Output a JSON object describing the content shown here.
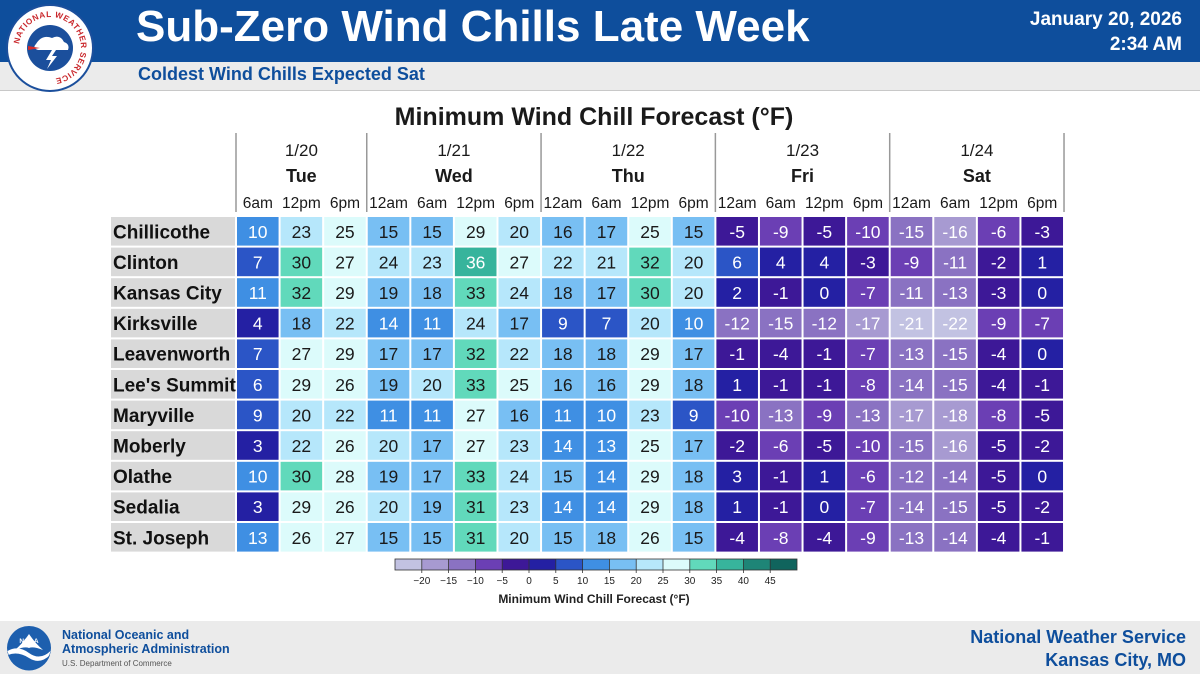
{
  "header": {
    "title": "Sub-Zero Wind Chills Late Week",
    "subtitle": "Coldest Wind Chills Expected Sat",
    "date": "January 20, 2026",
    "time": "2:34 AM",
    "logo_text": "NATIONAL WEATHER SERVICE"
  },
  "footer": {
    "noaa_line1": "National Oceanic and",
    "noaa_line2": "Atmospheric Administration",
    "noaa_dept": "U.S. Department of Commerce",
    "noaa_logo_text": "NOAA",
    "office_line1": "National Weather Service",
    "office_line2": "Kansas City, MO"
  },
  "colors": {
    "header_blue": "#0e4e9c",
    "scale": [
      {
        "min": -99,
        "max": -20,
        "color": "#c2c2e2"
      },
      {
        "min": -20,
        "max": -15,
        "color": "#a79ad1"
      },
      {
        "min": -15,
        "max": -10,
        "color": "#8a72c2"
      },
      {
        "min": -10,
        "max": -5,
        "color": "#6b3fb4"
      },
      {
        "min": -5,
        "max": 0,
        "color": "#3d1897"
      },
      {
        "min": 0,
        "max": 5,
        "color": "#2420a3"
      },
      {
        "min": 5,
        "max": 10,
        "color": "#2b55c6"
      },
      {
        "min": 10,
        "max": 15,
        "color": "#3f8fe3"
      },
      {
        "min": 15,
        "max": 20,
        "color": "#78bff3"
      },
      {
        "min": 20,
        "max": 25,
        "color": "#b6e7fb"
      },
      {
        "min": 25,
        "max": 30,
        "color": "#dcfbfb"
      },
      {
        "min": 30,
        "max": 35,
        "color": "#61d9bb"
      },
      {
        "min": 35,
        "max": 40,
        "color": "#37b49c"
      },
      {
        "min": 40,
        "max": 45,
        "color": "#1e8577"
      },
      {
        "min": 45,
        "max": 99,
        "color": "#10645d"
      }
    ]
  },
  "chart_data": {
    "type": "table",
    "title": "Minimum Wind Chill Forecast (°F)",
    "days": [
      {
        "date": "1/20",
        "day": "Tue",
        "times": [
          "6am",
          "12pm",
          "6pm"
        ]
      },
      {
        "date": "1/21",
        "day": "Wed",
        "times": [
          "12am",
          "6am",
          "12pm",
          "6pm"
        ]
      },
      {
        "date": "1/22",
        "day": "Thu",
        "times": [
          "12am",
          "6am",
          "12pm",
          "6pm"
        ]
      },
      {
        "date": "1/23",
        "day": "Fri",
        "times": [
          "12am",
          "6am",
          "12pm",
          "6pm"
        ]
      },
      {
        "date": "1/24",
        "day": "Sat",
        "times": [
          "12am",
          "6am",
          "12pm",
          "6pm"
        ]
      }
    ],
    "rows": [
      {
        "city": "Chillicothe",
        "values": [
          10,
          23,
          25,
          15,
          15,
          29,
          20,
          16,
          17,
          25,
          15,
          -5,
          -9,
          -5,
          -10,
          -15,
          -16,
          -6,
          -3
        ]
      },
      {
        "city": "Clinton",
        "values": [
          7,
          30,
          27,
          24,
          23,
          36,
          27,
          22,
          21,
          32,
          20,
          6,
          4,
          4,
          -3,
          -9,
          -11,
          -2,
          1
        ]
      },
      {
        "city": "Kansas City",
        "values": [
          11,
          32,
          29,
          19,
          18,
          33,
          24,
          18,
          17,
          30,
          20,
          2,
          -1,
          0,
          -7,
          -11,
          -13,
          -3,
          0
        ]
      },
      {
        "city": "Kirksville",
        "values": [
          4,
          18,
          22,
          14,
          11,
          24,
          17,
          9,
          7,
          20,
          10,
          -12,
          -15,
          -12,
          -17,
          -21,
          -22,
          -9,
          -7
        ]
      },
      {
        "city": "Leavenworth",
        "values": [
          7,
          27,
          29,
          17,
          17,
          32,
          22,
          18,
          18,
          29,
          17,
          -1,
          -4,
          -1,
          -7,
          -13,
          -15,
          -4,
          0
        ]
      },
      {
        "city": "Lee's Summit",
        "values": [
          6,
          29,
          26,
          19,
          20,
          33,
          25,
          16,
          16,
          29,
          18,
          1,
          -1,
          -1,
          -8,
          -14,
          -15,
          -4,
          -1
        ]
      },
      {
        "city": "Maryville",
        "values": [
          9,
          20,
          22,
          11,
          11,
          27,
          16,
          11,
          10,
          23,
          9,
          -10,
          -13,
          -9,
          -13,
          -17,
          -18,
          -8,
          -5
        ]
      },
      {
        "city": "Moberly",
        "values": [
          3,
          22,
          26,
          20,
          17,
          27,
          23,
          14,
          13,
          25,
          17,
          -2,
          -6,
          -5,
          -10,
          -15,
          -16,
          -5,
          -2
        ]
      },
      {
        "city": "Olathe",
        "values": [
          10,
          30,
          28,
          19,
          17,
          33,
          24,
          15,
          14,
          29,
          18,
          3,
          -1,
          1,
          -6,
          -12,
          -14,
          -5,
          0
        ]
      },
      {
        "city": "Sedalia",
        "values": [
          3,
          29,
          26,
          20,
          19,
          31,
          23,
          14,
          14,
          29,
          18,
          1,
          -1,
          0,
          -7,
          -14,
          -15,
          -5,
          -2
        ]
      },
      {
        "city": "St. Joseph",
        "values": [
          13,
          26,
          27,
          15,
          15,
          31,
          20,
          15,
          18,
          26,
          15,
          -4,
          -8,
          -4,
          -9,
          -13,
          -14,
          -4,
          -1
        ]
      }
    ],
    "legend": {
      "title": "Minimum Wind Chill Forecast (°F)",
      "ticks": [
        "−20",
        "−15",
        "−10",
        "−5",
        "0",
        "5",
        "10",
        "15",
        "20",
        "25",
        "30",
        "35",
        "40",
        "45"
      ],
      "tick_values": [
        -20,
        -15,
        -10,
        -5,
        0,
        5,
        10,
        15,
        20,
        25,
        30,
        35,
        40,
        45
      ]
    }
  }
}
